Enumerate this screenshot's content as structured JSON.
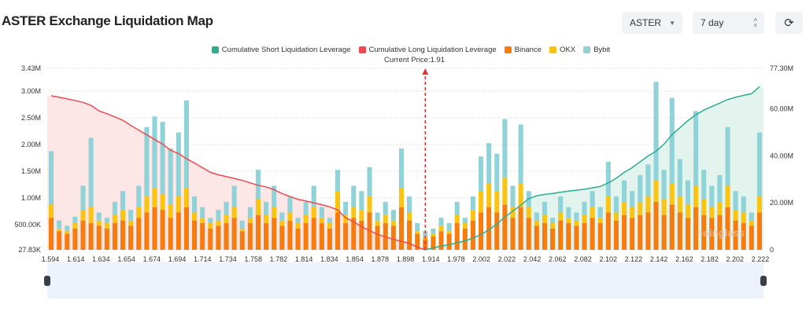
{
  "header": {
    "title": "ASTER Exchange Liquidation Map",
    "coin": "ASTER",
    "range": "7 day",
    "refresh_icon": "refresh-icon"
  },
  "colors": {
    "short": "#2bae92",
    "long": "#ef4a4f",
    "binance": "#f67c0f",
    "okx": "#f9c412",
    "bybit": "#8fd3d8",
    "long_fill": "#fde6e6",
    "short_fill": "#e3f3ee",
    "slider_bg": "#eef2fd"
  },
  "watermark": "coinglass",
  "chart_data": {
    "type": "bar",
    "legend": [
      "Cumulative Short Liquidation Leverage",
      "Cumulative Long Liquidation Leverage",
      "Binance",
      "OKX",
      "Bybit"
    ],
    "legend_placement": "top",
    "current_price_label": "Current Price:1.91",
    "current_price": 1.91,
    "x_tick_labels": [
      "1.594",
      "1.614",
      "1.634",
      "1.654",
      "1.674",
      "1.694",
      "1.714",
      "1.734",
      "1.758",
      "1.782",
      "1.814",
      "1.834",
      "1.854",
      "1.878",
      "1.898",
      "1.914",
      "1.978",
      "2.002",
      "2.022",
      "2.042",
      "2.062",
      "2.082",
      "2.102",
      "2.122",
      "2.142",
      "2.162",
      "2.182",
      "2.202",
      "2.222"
    ],
    "y_left_ticks": [
      "3.43M",
      "3.00M",
      "2.50M",
      "2.00M",
      "1.50M",
      "1.00M",
      "500.00K",
      "27.83K"
    ],
    "y_left_tick_values": [
      3.43,
      3.0,
      2.5,
      2.0,
      1.5,
      1.0,
      0.5,
      0.02783
    ],
    "y_left_range": [
      0.02783,
      3.43
    ],
    "y_right_ticks": [
      "77.30M",
      "60.00M",
      "40.00M",
      "20.00M",
      "0"
    ],
    "y_right_tick_values": [
      77.3,
      60,
      40,
      20,
      0
    ],
    "y_right_range": [
      0,
      77.3
    ],
    "grid": "dotted horizontal",
    "current_price_bar_index": 47,
    "series": [
      {
        "name": "Binance",
        "values": [
          0.6,
          0.35,
          0.3,
          0.4,
          0.55,
          0.5,
          0.45,
          0.4,
          0.5,
          0.55,
          0.45,
          0.6,
          0.7,
          0.8,
          0.75,
          0.6,
          0.7,
          0.8,
          0.55,
          0.5,
          0.4,
          0.45,
          0.5,
          0.6,
          0.35,
          0.5,
          0.65,
          0.5,
          0.6,
          0.45,
          0.55,
          0.4,
          0.5,
          0.6,
          0.5,
          0.4,
          0.7,
          0.5,
          0.6,
          0.55,
          0.7,
          0.45,
          0.5,
          0.45,
          0.8,
          0.55,
          0.3,
          0.2,
          0.25,
          0.35,
          0.3,
          0.5,
          0.4,
          0.55,
          0.7,
          0.8,
          0.7,
          0.85,
          0.6,
          0.8,
          0.6,
          0.45,
          0.5,
          0.4,
          0.55,
          0.5,
          0.45,
          0.5,
          0.6,
          0.5,
          0.7,
          0.55,
          0.65,
          0.6,
          0.65,
          0.7,
          0.9,
          0.65,
          0.85,
          0.7,
          0.6,
          0.8,
          0.65,
          0.6,
          0.65,
          0.8,
          0.55,
          0.5,
          0.45,
          0.7
        ]
      },
      {
        "name": "OKX",
        "values": [
          0.25,
          0.05,
          0.05,
          0.1,
          0.2,
          0.3,
          0.1,
          0.1,
          0.15,
          0.2,
          0.1,
          0.2,
          0.3,
          0.35,
          0.3,
          0.25,
          0.3,
          0.35,
          0.15,
          0.1,
          0.1,
          0.1,
          0.15,
          0.2,
          0.05,
          0.1,
          0.3,
          0.15,
          0.2,
          0.1,
          0.15,
          0.1,
          0.15,
          0.2,
          0.1,
          0.1,
          0.4,
          0.15,
          0.2,
          0.2,
          0.3,
          0.1,
          0.15,
          0.1,
          0.35,
          0.15,
          0.05,
          0.05,
          0.05,
          0.1,
          0.05,
          0.15,
          0.1,
          0.2,
          0.4,
          0.45,
          0.4,
          0.5,
          0.2,
          0.45,
          0.2,
          0.1,
          0.15,
          0.1,
          0.15,
          0.1,
          0.1,
          0.15,
          0.2,
          0.1,
          0.3,
          0.15,
          0.25,
          0.2,
          0.25,
          0.3,
          0.4,
          0.3,
          0.4,
          0.3,
          0.25,
          0.4,
          0.3,
          0.2,
          0.25,
          0.4,
          0.2,
          0.2,
          0.1,
          0.3
        ]
      },
      {
        "name": "Bybit",
        "values": [
          1.0,
          0.15,
          0.1,
          0.12,
          0.45,
          1.3,
          0.15,
          0.1,
          0.25,
          0.35,
          0.2,
          0.4,
          1.3,
          1.35,
          1.35,
          1.05,
          1.2,
          1.65,
          0.3,
          0.2,
          0.1,
          0.2,
          0.25,
          0.4,
          0.15,
          0.2,
          0.55,
          0.25,
          0.4,
          0.15,
          0.3,
          0.1,
          0.25,
          0.4,
          0.2,
          0.1,
          0.4,
          0.25,
          0.4,
          0.35,
          0.55,
          0.15,
          0.25,
          0.2,
          0.75,
          0.3,
          0.15,
          0.1,
          0.1,
          0.15,
          0.15,
          0.25,
          0.1,
          0.25,
          0.65,
          0.75,
          0.7,
          1.1,
          0.4,
          1.1,
          0.3,
          0.15,
          0.25,
          0.1,
          0.3,
          0.2,
          0.15,
          0.25,
          0.3,
          0.2,
          0.65,
          0.3,
          0.4,
          0.3,
          0.5,
          0.6,
          1.85,
          0.55,
          1.6,
          0.7,
          0.45,
          1.4,
          0.55,
          0.4,
          0.5,
          1.1,
          0.35,
          0.3,
          0.15,
          1.2
        ]
      },
      {
        "name": "Cumulative Long Liquidation Leverage",
        "axis": "right",
        "values": [
          65.6,
          65,
          64.3,
          63.6,
          62.8,
          61.5,
          59.2,
          58,
          56.6,
          55.2,
          53,
          51,
          49,
          47,
          45,
          42.4,
          41,
          38.8,
          37,
          35,
          33,
          32,
          31.2,
          30.4,
          29.6,
          28.5,
          27.5,
          26.8,
          25.6,
          24,
          22.7,
          21.5,
          20.8,
          20,
          19.2,
          18.3,
          17,
          13.6,
          12,
          9.8,
          8.2,
          6.6,
          5.5,
          4.5,
          3.6,
          2.8,
          1.2,
          0
        ]
      },
      {
        "name": "Cumulative Short Liquidation Leverage",
        "axis": "right",
        "start_index": 47,
        "values": [
          0,
          0.8,
          1.6,
          2.2,
          3,
          3.8,
          5,
          6.5,
          8.5,
          11,
          14,
          16.5,
          19,
          21.8,
          23,
          23.6,
          24,
          24.5,
          25,
          25.4,
          25.8,
          26.4,
          27,
          28.5,
          30.5,
          33,
          35,
          37.5,
          40,
          42,
          45,
          49,
          52,
          55,
          57.5,
          59.5,
          61,
          62.5,
          64,
          65,
          65.8,
          66.5,
          69.5
        ]
      }
    ]
  }
}
